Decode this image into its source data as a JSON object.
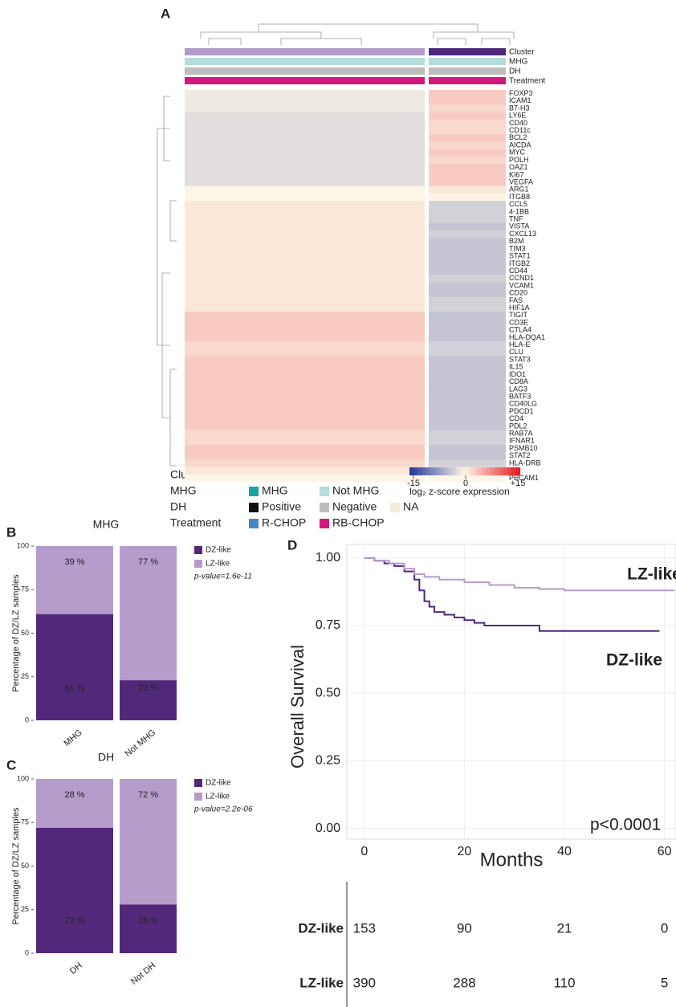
{
  "chart_data": [
    {
      "type": "heatmap",
      "panel": "A",
      "rows": [
        "FOXP3",
        "ICAM1",
        "B7-H3",
        "LY6E",
        "CD40",
        "CD11c",
        "BCL2",
        "AICDA",
        "MYC",
        "POLH",
        "OAZ1",
        "KI67",
        "VEGFA",
        "ARG1",
        "ITGB8",
        "CCL5",
        "4-1BB",
        "TNF",
        "VISTA",
        "CXCL13",
        "B2M",
        "TIM3",
        "STAT1",
        "ITGB2",
        "CD44",
        "CCND1",
        "VCAM1",
        "CD20",
        "FAS",
        "HIF1A",
        "TIGIT",
        "CD3E",
        "CTLA4",
        "HLA-DQA1",
        "HLA-E",
        "CLU",
        "STAT3",
        "IL15",
        "IDO1",
        "CD8A",
        "LAG3",
        "BATF3",
        "CD40LG",
        "PDCD1",
        "CD4",
        "PDL2",
        "RAB7A",
        "IFNAR1",
        "PSMB10",
        "STAT2",
        "HLA-DRB",
        "H3",
        "PECAM1"
      ],
      "values": [
        [
          -1,
          3
        ],
        [
          -1,
          3
        ],
        [
          -1,
          2
        ],
        [
          -2,
          3
        ],
        [
          -2,
          2
        ],
        [
          -2,
          2
        ],
        [
          -2,
          3
        ],
        [
          -2,
          2
        ],
        [
          -2,
          3
        ],
        [
          -2,
          2
        ],
        [
          -2,
          3
        ],
        [
          -2,
          3
        ],
        [
          -2,
          3
        ],
        [
          0,
          1
        ],
        [
          0,
          0
        ],
        [
          1,
          -3
        ],
        [
          1,
          -3
        ],
        [
          1,
          -3
        ],
        [
          1,
          -4
        ],
        [
          1,
          -3
        ],
        [
          1,
          -4
        ],
        [
          1,
          -4
        ],
        [
          1,
          -4
        ],
        [
          1,
          -4
        ],
        [
          1,
          -4
        ],
        [
          1,
          -3
        ],
        [
          1,
          -4
        ],
        [
          1,
          -4
        ],
        [
          1,
          -3
        ],
        [
          1,
          -3
        ],
        [
          3,
          -4
        ],
        [
          3,
          -4
        ],
        [
          3,
          -4
        ],
        [
          3,
          -4
        ],
        [
          2,
          -3
        ],
        [
          2,
          -3
        ],
        [
          3,
          -4
        ],
        [
          3,
          -4
        ],
        [
          3,
          -4
        ],
        [
          3,
          -4
        ],
        [
          3,
          -4
        ],
        [
          3,
          -4
        ],
        [
          3,
          -4
        ],
        [
          3,
          -4
        ],
        [
          3,
          -4
        ],
        [
          3,
          -4
        ],
        [
          2,
          -3
        ],
        [
          2,
          -3
        ],
        [
          3,
          -4
        ],
        [
          3,
          -4
        ],
        [
          2,
          -3
        ],
        [
          1,
          -1
        ],
        [
          0,
          0
        ]
      ],
      "annotations": [
        {
          "name": "Cluster",
          "levels": [
            {
              "label": "DZ-like",
              "color": "#4e2a7a"
            },
            {
              "label": "LZ-like",
              "color": "#b39ccc"
            }
          ]
        },
        {
          "name": "MHG",
          "levels": [
            {
              "label": "MHG",
              "color": "#1aa3a3"
            },
            {
              "label": "Not MHG",
              "color": "#b4dcdc"
            }
          ]
        },
        {
          "name": "DH",
          "levels": [
            {
              "label": "Positive",
              "color": "#111111"
            },
            {
              "label": "Negative",
              "color": "#bdbdbd"
            },
            {
              "label": "NA",
              "color": "#f3ecd8"
            }
          ]
        },
        {
          "name": "Treatment",
          "levels": [
            {
              "label": "R-CHOP",
              "color": "#4a86c8"
            },
            {
              "label": "RB-CHOP",
              "color": "#d0197a"
            }
          ]
        }
      ],
      "zlim": [
        -15,
        15
      ],
      "zticks": [
        -15,
        0,
        {
          "value": 15,
          "label": "+15"
        }
      ],
      "low_color": "#2b3ea0",
      "mid_color": "#fdf6e6",
      "high_color": "#e8202a",
      "colorbar_label": "log₂ z-score expression"
    },
    {
      "type": "stacked_bar",
      "panel": "B",
      "title": "MHG",
      "categories": [
        "MHG",
        "Not MHG"
      ],
      "series": [
        {
          "name": "DZ-like",
          "color": "#52297a",
          "values": [
            61,
            23
          ],
          "value_labels": [
            "61 %",
            "23 %"
          ]
        },
        {
          "name": "LZ-like",
          "color": "#b59ccb",
          "values": [
            39,
            77
          ],
          "value_labels": [
            "39 %",
            "77 %"
          ]
        }
      ],
      "ylabel": "Percentage of DZ/LZ samples",
      "ylim": [
        0,
        100
      ],
      "yticks": [
        0,
        25,
        50,
        75,
        100
      ],
      "annotation": "p-value=1.6e-11"
    },
    {
      "type": "stacked_bar",
      "panel": "C",
      "title": "DH",
      "categories": [
        "DH",
        "Not DH"
      ],
      "series": [
        {
          "name": "DZ-like",
          "color": "#52297a",
          "values": [
            72,
            28
          ],
          "value_labels": [
            "72 %",
            "28 %"
          ]
        },
        {
          "name": "LZ-like",
          "color": "#b59ccb",
          "values": [
            28,
            72
          ],
          "value_labels": [
            "28 %",
            "72 %"
          ]
        }
      ],
      "ylabel": "Percentage of DZ/LZ samples",
      "ylim": [
        0,
        100
      ],
      "yticks": [
        0,
        25,
        50,
        75,
        100
      ],
      "annotation": "p-value=2.2e-06"
    },
    {
      "type": "km",
      "panel": "D",
      "xlabel": "Months",
      "ylabel": "Overall Survival",
      "xlim": [
        -3.5,
        62.3
      ],
      "xticks": [
        0,
        20,
        40,
        60
      ],
      "ylim": [
        -0.04,
        1.05
      ],
      "yticks": [
        {
          "value": 0,
          "label": "0.00"
        },
        {
          "value": 0.25,
          "label": "0.25"
        },
        {
          "value": 0.5,
          "label": "0.50"
        },
        {
          "value": 0.75,
          "label": "0.75"
        },
        {
          "value": 1,
          "label": "1.00"
        }
      ],
      "grid": true,
      "annotation": "p<0.0001",
      "series": [
        {
          "name": "DZ-like",
          "color": "#4e2a7a",
          "x": [
            0,
            2,
            4,
            6,
            8,
            10,
            11,
            12,
            13,
            14,
            16,
            18,
            20,
            22,
            24,
            35,
            59
          ],
          "values": [
            1,
            0.99,
            0.98,
            0.97,
            0.95,
            0.92,
            0.88,
            0.84,
            0.82,
            0.8,
            0.79,
            0.78,
            0.77,
            0.76,
            0.75,
            0.73,
            0.73
          ],
          "at_risk": [
            153,
            90,
            21,
            0
          ]
        },
        {
          "name": "LZ-like",
          "color": "#b59ccb",
          "x": [
            0,
            2,
            5,
            8,
            10,
            12,
            15,
            20,
            25,
            30,
            35,
            40,
            62
          ],
          "values": [
            1,
            0.99,
            0.98,
            0.96,
            0.94,
            0.93,
            0.92,
            0.91,
            0.9,
            0.89,
            0.885,
            0.88,
            0.88
          ],
          "at_risk": [
            390,
            288,
            110,
            5
          ]
        }
      ]
    }
  ]
}
